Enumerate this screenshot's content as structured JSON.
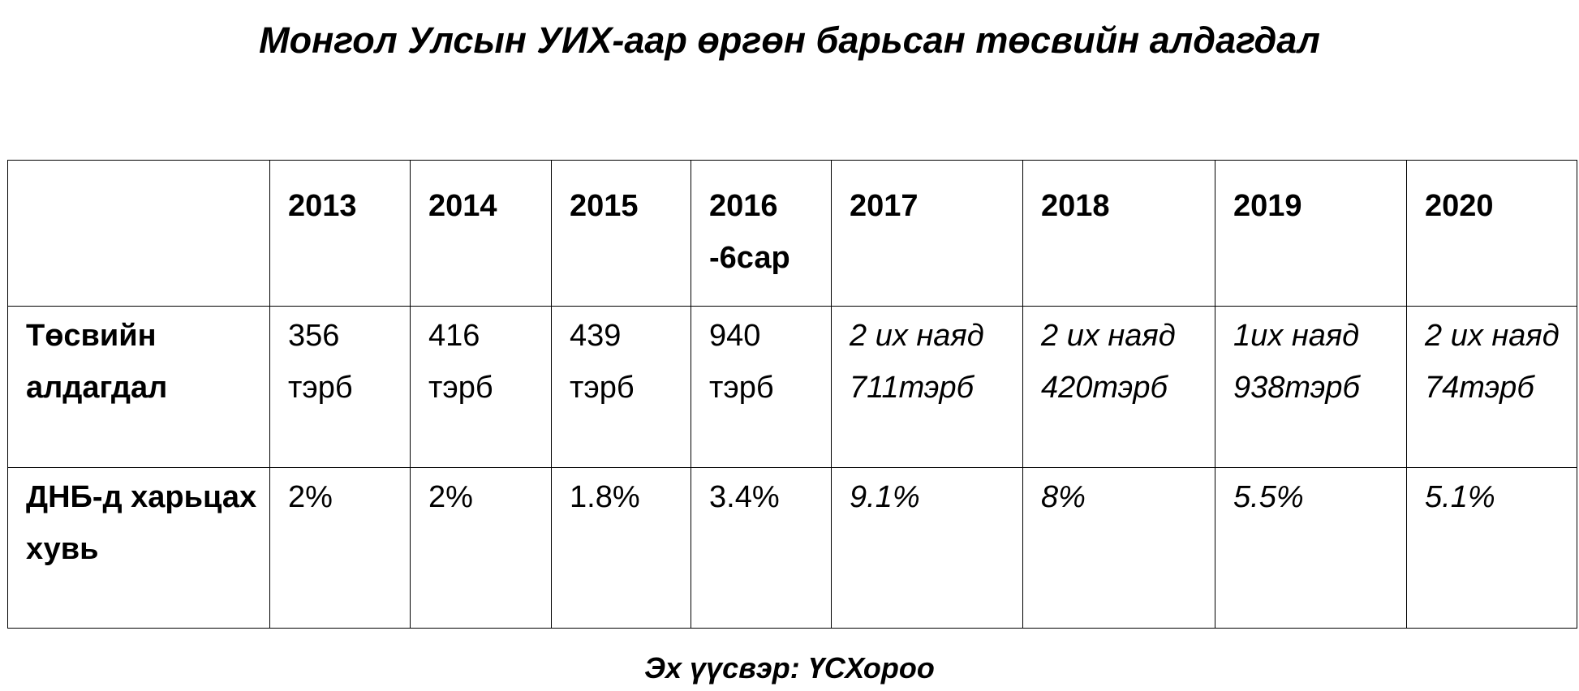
{
  "title": "Монгол Улсын УИХ-аар өргөн барьсан төсвийн алдагдал",
  "table": {
    "header": [
      "",
      "2013",
      "2014",
      "2015",
      "2016\n-6сар",
      "2017",
      "2018",
      "2019",
      "2020"
    ],
    "rows": [
      [
        "Төсвийн алдагдал",
        "356 тэрб",
        "416 тэрб",
        "439 тэрб",
        "940 тэрб",
        "2 их наяд 711тэрб",
        "2 их наяд 420тэрб",
        "1их наяд 938тэрб",
        "2 их наяд 74тэрб"
      ],
      [
        "ДНБ-д харьцах хувь",
        "2%",
        "2%",
        "1.8%",
        "3.4%",
        "9.1%",
        "8%",
        "5.5%",
        "5.1%"
      ]
    ]
  },
  "source": "Эх үүсвэр: ҮСХороо"
}
